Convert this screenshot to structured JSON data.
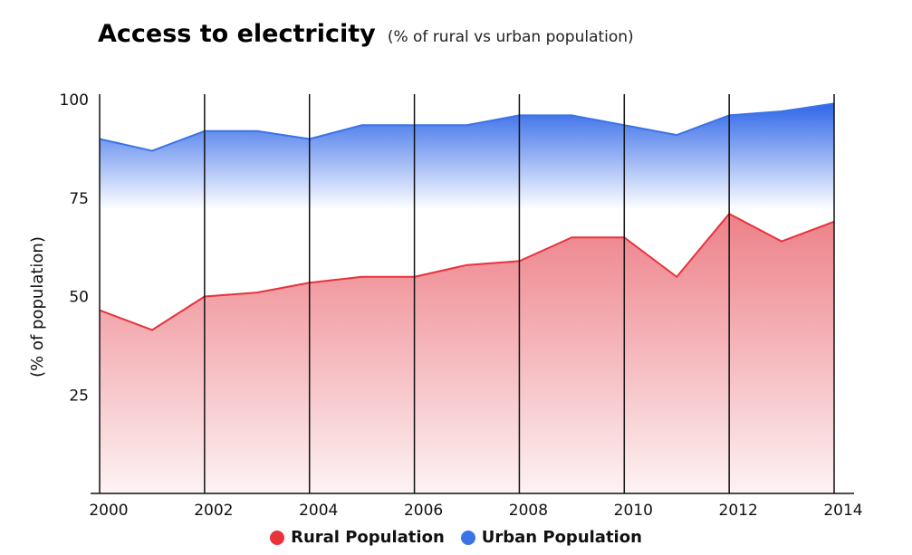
{
  "chart_data": {
    "type": "area",
    "title": "Access to electricity",
    "subtitle": "(% of rural vs urban population)",
    "xlabel": "",
    "ylabel": "(% of  population)",
    "x": [
      2000,
      2001,
      2002,
      2003,
      2004,
      2005,
      2006,
      2007,
      2008,
      2009,
      2010,
      2011,
      2012,
      2013,
      2014
    ],
    "xticks": [
      "2000",
      "2002",
      "2004",
      "2006",
      "2008",
      "2010",
      "2012",
      "2014"
    ],
    "yticks": [
      "25",
      "50",
      "75",
      "100"
    ],
    "xlim": [
      2000,
      2014
    ],
    "ylim": [
      0,
      100
    ],
    "grid": "vertical",
    "legend_position": "bottom-center",
    "series": [
      {
        "name": "Rural Population",
        "color": "#e8323c",
        "fill": "#f08c92",
        "values": [
          46.5,
          41.5,
          50,
          51,
          53.5,
          55,
          55,
          58,
          59,
          65,
          65,
          55,
          71,
          64,
          69
        ]
      },
      {
        "name": "Urban Population",
        "color": "#3a74e6",
        "fill": "#4a7fec",
        "values": [
          90,
          87,
          92,
          92,
          90,
          93.5,
          93.5,
          93.5,
          96,
          96,
          93.5,
          91,
          96,
          97,
          99
        ]
      }
    ]
  }
}
